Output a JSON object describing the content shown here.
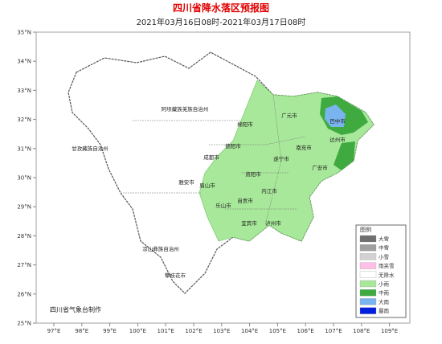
{
  "header": {
    "title": "四川省降水落区预报图",
    "subtitle": "2021年03月16日08时-2021年03月17日08时"
  },
  "map": {
    "lat_ticks": [
      {
        "value": 35,
        "label": "35°N"
      },
      {
        "value": 34,
        "label": "34°N"
      },
      {
        "value": 33,
        "label": "33°N"
      },
      {
        "value": 32,
        "label": "32°N"
      },
      {
        "value": 31,
        "label": "31°N"
      },
      {
        "value": 30,
        "label": "30°N"
      },
      {
        "value": 29,
        "label": "29°N"
      },
      {
        "value": 28,
        "label": "28°N"
      },
      {
        "value": 27,
        "label": "27°N"
      },
      {
        "value": 26,
        "label": "26°N"
      },
      {
        "value": 25,
        "label": "25°N"
      }
    ],
    "lon_ticks": [
      {
        "value": 97,
        "label": "97°E"
      },
      {
        "value": 98,
        "label": "98°E"
      },
      {
        "value": 99,
        "label": "99°E"
      },
      {
        "value": 100,
        "label": "100°E"
      },
      {
        "value": 101,
        "label": "101°E"
      },
      {
        "value": 102,
        "label": "102°E"
      },
      {
        "value": 103,
        "label": "103°E"
      },
      {
        "value": 104,
        "label": "104°E"
      },
      {
        "value": 105,
        "label": "105°E"
      },
      {
        "value": 106,
        "label": "106°E"
      },
      {
        "value": 107,
        "label": "107°E"
      },
      {
        "value": 108,
        "label": "108°E"
      },
      {
        "value": 109,
        "label": "109°E"
      }
    ],
    "places": [
      "阿坝藏族羌族自治州",
      "甘孜藏族自治州",
      "凉山彝族自治州",
      "攀枝花市",
      "雅安市",
      "成都市",
      "眉山市",
      "乐山市",
      "绵阳市",
      "德阳市",
      "广元市",
      "巴中市",
      "达州市",
      "南充市",
      "遂宁市",
      "广安市",
      "资阳市",
      "内江市",
      "自贡市",
      "宜宾市",
      "泸州市"
    ]
  },
  "legend": {
    "title": "图例",
    "items": [
      "大雪",
      "中雪",
      "小雪",
      "雨夹雪",
      "无降水",
      "小雨",
      "中雨",
      "大雨",
      "暴雨"
    ]
  },
  "footer": "四川省气象台制作"
}
